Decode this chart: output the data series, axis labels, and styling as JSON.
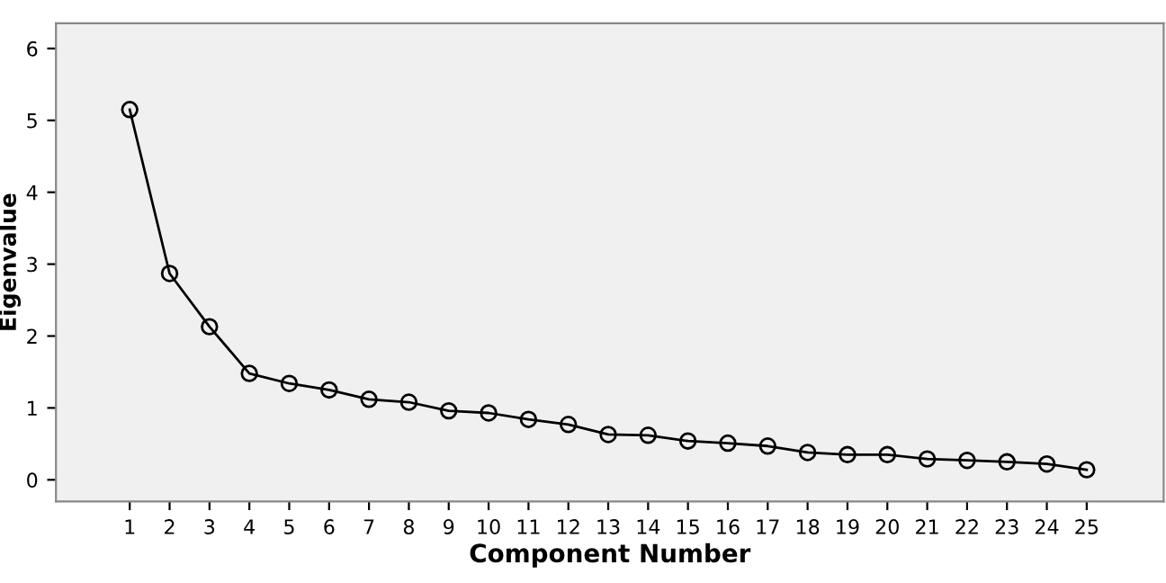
{
  "chart_data": {
    "type": "line",
    "xlabel": "Component Number",
    "ylabel": "Eigenvalue",
    "categories": [
      "1",
      "2",
      "3",
      "4",
      "5",
      "6",
      "7",
      "8",
      "9",
      "10",
      "11",
      "12",
      "13",
      "14",
      "15",
      "16",
      "17",
      "18",
      "19",
      "20",
      "21",
      "22",
      "23",
      "24",
      "25"
    ],
    "series": [
      {
        "color": "#000000",
        "values": [
          5.15,
          2.87,
          2.13,
          1.48,
          1.34,
          1.25,
          1.12,
          1.08,
          0.96,
          0.93,
          0.84,
          0.77,
          0.63,
          0.62,
          0.54,
          0.51,
          0.47,
          0.38,
          0.35,
          0.35,
          0.29,
          0.27,
          0.25,
          0.22,
          0.14
        ]
      }
    ],
    "ylim": [
      -0.3,
      6.35
    ],
    "yticks": [
      0,
      1,
      2,
      3,
      4,
      5,
      6
    ],
    "marker": "circle",
    "line_style": "solid",
    "grid": false,
    "legend": false
  }
}
